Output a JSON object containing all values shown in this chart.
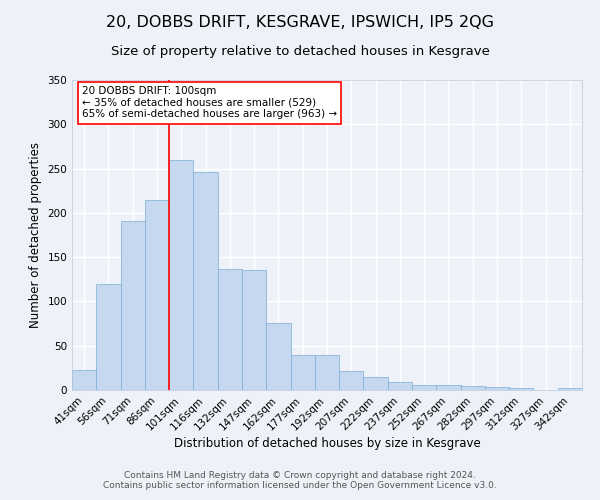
{
  "title": "20, DOBBS DRIFT, KESGRAVE, IPSWICH, IP5 2QG",
  "subtitle": "Size of property relative to detached houses in Kesgrave",
  "xlabel": "Distribution of detached houses by size in Kesgrave",
  "ylabel": "Number of detached properties",
  "categories": [
    "41sqm",
    "56sqm",
    "71sqm",
    "86sqm",
    "101sqm",
    "116sqm",
    "132sqm",
    "147sqm",
    "162sqm",
    "177sqm",
    "192sqm",
    "207sqm",
    "222sqm",
    "237sqm",
    "252sqm",
    "267sqm",
    "282sqm",
    "297sqm",
    "312sqm",
    "327sqm",
    "342sqm"
  ],
  "bar_heights": [
    23,
    120,
    191,
    214,
    260,
    246,
    137,
    136,
    76,
    40,
    40,
    22,
    15,
    9,
    6,
    6,
    5,
    3,
    2,
    0,
    2
  ],
  "bar_color": "#c5d8f0",
  "bar_edge_color": "#7baed4",
  "vline_x_index": 4,
  "vline_color": "red",
  "ylim": [
    0,
    350
  ],
  "yticks": [
    0,
    50,
    100,
    150,
    200,
    250,
    300,
    350
  ],
  "annotation_title": "20 DOBBS DRIFT: 100sqm",
  "annotation_line1": "← 35% of detached houses are smaller (529)",
  "annotation_line2": "65% of semi-detached houses are larger (963) →",
  "annotation_box_color": "#ffffff",
  "annotation_box_edge": "red",
  "footer_line1": "Contains HM Land Registry data © Crown copyright and database right 2024.",
  "footer_line2": "Contains public sector information licensed under the Open Government Licence v3.0.",
  "background_color": "#eef2f8",
  "grid_color": "#ffffff",
  "title_fontsize": 11.5,
  "subtitle_fontsize": 9.5,
  "axis_label_fontsize": 8.5,
  "tick_fontsize": 7.5,
  "footer_fontsize": 6.5,
  "annotation_fontsize": 7.5
}
